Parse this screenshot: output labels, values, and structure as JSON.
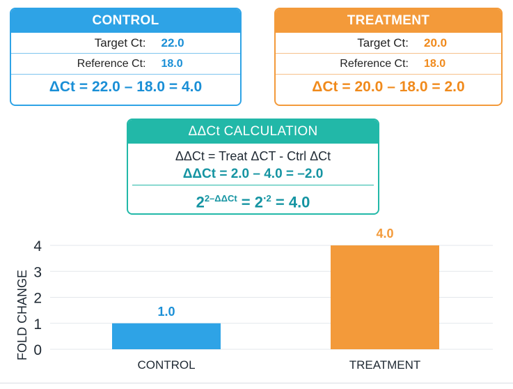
{
  "control": {
    "title": "CONTROL",
    "target_label": "Target Ct:",
    "target_value": "22.0",
    "reference_label": "Reference Ct:",
    "reference_value": "18.0",
    "formula": "ΔCt = 22.0 – 18.0 = 4.0"
  },
  "treatment": {
    "title": "TREATMENT",
    "target_label": "Target Ct:",
    "target_value": "20.0",
    "reference_label": "Reference Ct:",
    "reference_value": "18.0",
    "formula": "ΔCt = 20.0 – 18.0 = 2.0"
  },
  "ddct": {
    "title": "ΔΔCt CALCULATION",
    "line1": "ΔΔCt = Treat ΔCT - Ctrl ΔCt",
    "line2": "ΔΔCt = 2.0 – 4.0 = –2.0",
    "final_base1": "2",
    "final_exp1": "2–ΔΔCt",
    "final_mid": " = 2",
    "final_exp2": "‧2",
    "final_end": " = 4.0"
  },
  "colors": {
    "control": "#2ea3e6",
    "treatment": "#f39a3a",
    "teal": "#22b8a8",
    "grid": "#e3e7eb",
    "axis_text": "#1f2933",
    "control_label": "#1a8fd6"
  },
  "chart_data": {
    "type": "bar",
    "categories": [
      "CONTROL",
      "TREATMENT"
    ],
    "values": [
      1.0,
      4.0
    ],
    "value_labels": [
      "1.0",
      "4.0"
    ],
    "ylabel": "FOLD CHANGE",
    "ylim": [
      0,
      4
    ],
    "yticks": [
      0,
      1,
      2,
      3,
      4
    ],
    "grid": true
  }
}
